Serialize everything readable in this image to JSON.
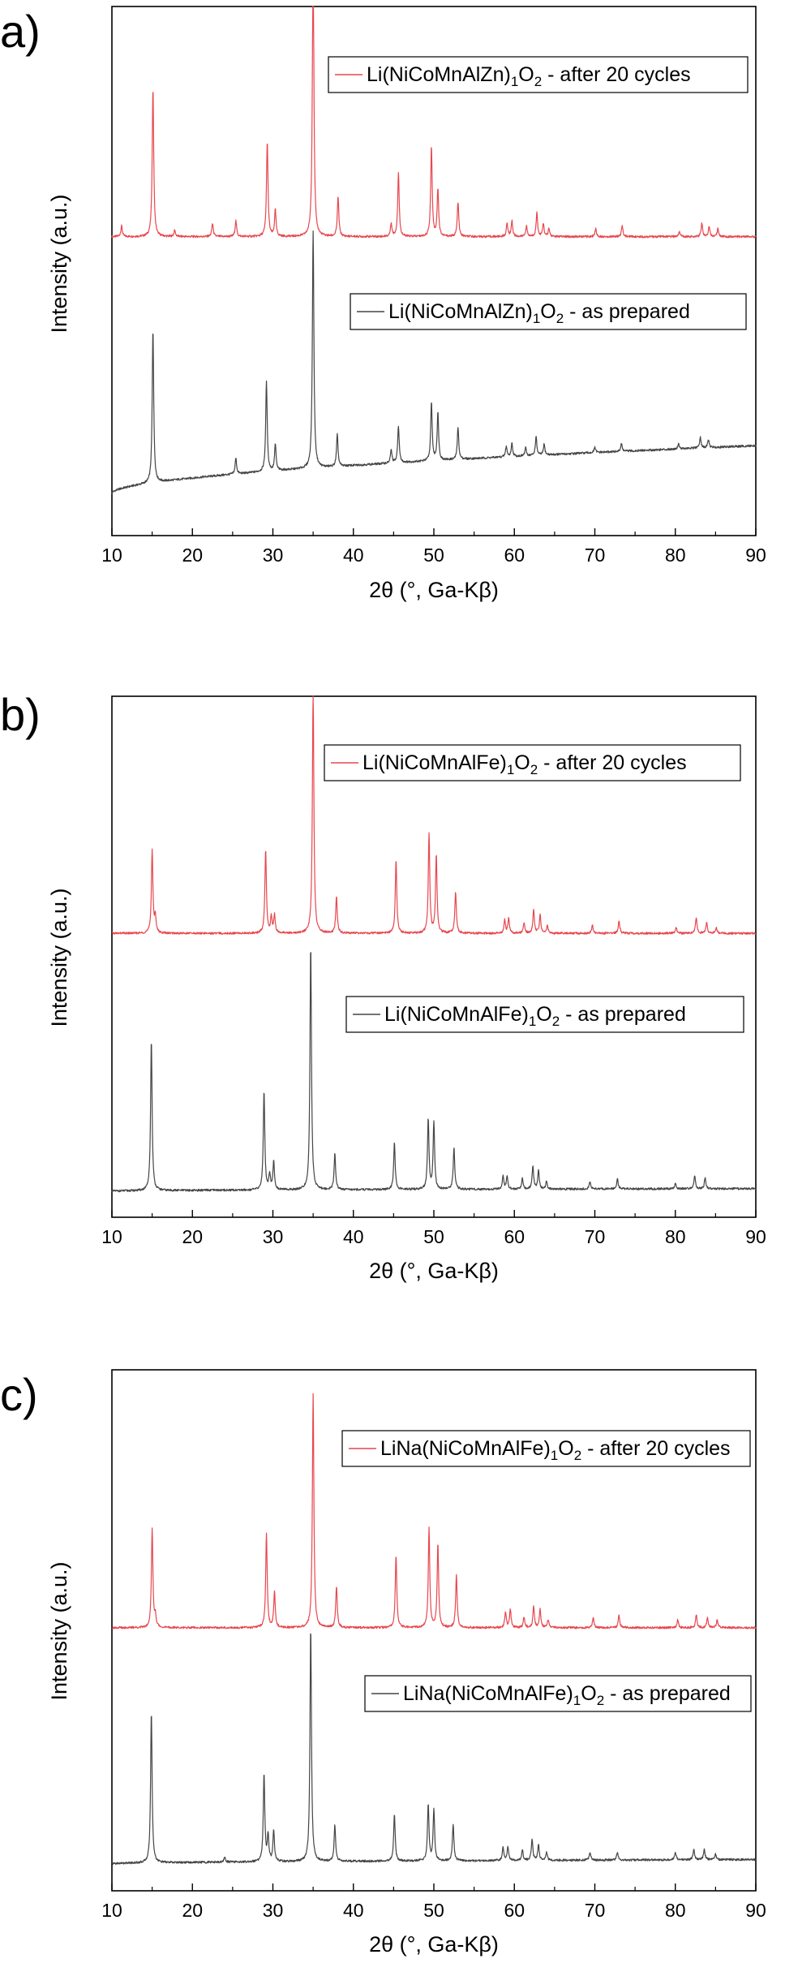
{
  "chart_data": [
    {
      "panel": "a)",
      "type": "line",
      "xlabel": "2θ (°, Ga-Kβ)",
      "ylabel": "Intensity (a.u.)",
      "xlim": [
        10,
        90
      ],
      "xticks": [
        10,
        20,
        30,
        40,
        50,
        60,
        70,
        80,
        90
      ],
      "legend_placement": "top-right, next to each trace",
      "series": [
        {
          "name_main": "Li(NiCoMnAlZn)",
          "name_sub": "1",
          "name_o": "O",
          "name_sub2": "2",
          "name_suffix": " - after 20 cycles",
          "color": "#e8474f",
          "baseline": 0.565,
          "peaks": [
            [
              11.2,
              0.02
            ],
            [
              15.1,
              0.28
            ],
            [
              17.8,
              0.012
            ],
            [
              22.5,
              0.025
            ],
            [
              25.4,
              0.03
            ],
            [
              29.3,
              0.18
            ],
            [
              30.3,
              0.05
            ],
            [
              35.0,
              0.55
            ],
            [
              38.1,
              0.075
            ],
            [
              44.7,
              0.025
            ],
            [
              45.6,
              0.12
            ],
            [
              49.7,
              0.17
            ],
            [
              50.5,
              0.09
            ],
            [
              53.0,
              0.065
            ],
            [
              59.1,
              0.025
            ],
            [
              59.7,
              0.03
            ],
            [
              61.5,
              0.02
            ],
            [
              62.8,
              0.045
            ],
            [
              63.6,
              0.025
            ],
            [
              64.3,
              0.015
            ],
            [
              70.1,
              0.015
            ],
            [
              73.4,
              0.02
            ],
            [
              80.5,
              0.01
            ],
            [
              83.3,
              0.025
            ],
            [
              84.2,
              0.02
            ],
            [
              85.3,
              0.015
            ]
          ]
        },
        {
          "name_main": "Li(NiCoMnAlZn)",
          "name_sub": "1",
          "name_o": "O",
          "name_sub2": "2",
          "name_suffix": " - as prepared",
          "color": "#454545",
          "baseline_start": 0.08,
          "baseline_end": 0.17,
          "peaks": [
            [
              15.1,
              0.29
            ],
            [
              25.4,
              0.03
            ],
            [
              29.2,
              0.17
            ],
            [
              30.3,
              0.05
            ],
            [
              35.0,
              0.45
            ],
            [
              38.0,
              0.06
            ],
            [
              44.7,
              0.025
            ],
            [
              45.6,
              0.07
            ],
            [
              49.7,
              0.11
            ],
            [
              50.5,
              0.09
            ],
            [
              53.0,
              0.06
            ],
            [
              59.0,
              0.02
            ],
            [
              59.7,
              0.025
            ],
            [
              61.4,
              0.015
            ],
            [
              62.7,
              0.035
            ],
            [
              63.7,
              0.02
            ],
            [
              70.0,
              0.01
            ],
            [
              73.3,
              0.015
            ],
            [
              80.4,
              0.01
            ],
            [
              83.1,
              0.02
            ],
            [
              84.1,
              0.015
            ]
          ]
        }
      ]
    },
    {
      "panel": "b)",
      "type": "line",
      "xlabel": "2θ (°, Ga-Kβ)",
      "ylabel": "Intensity (a.u.)",
      "xlim": [
        10,
        90
      ],
      "xticks": [
        10,
        20,
        30,
        40,
        50,
        60,
        70,
        80,
        90
      ],
      "legend_placement": "top-right, next to each trace",
      "series": [
        {
          "name_main": "Li(NiCoMnAlFe)",
          "name_sub": "1",
          "name_o": "O",
          "name_sub2": "2",
          "name_suffix": " - after 20 cycles",
          "color": "#e8474f",
          "baseline": 0.545,
          "peaks": [
            [
              15.0,
              0.16
            ],
            [
              15.4,
              0.03
            ],
            [
              29.1,
              0.16
            ],
            [
              29.8,
              0.03
            ],
            [
              30.2,
              0.035
            ],
            [
              35.0,
              0.47
            ],
            [
              37.9,
              0.07
            ],
            [
              45.3,
              0.14
            ],
            [
              49.4,
              0.19
            ],
            [
              50.3,
              0.15
            ],
            [
              52.7,
              0.08
            ],
            [
              58.8,
              0.025
            ],
            [
              59.3,
              0.03
            ],
            [
              61.2,
              0.02
            ],
            [
              62.4,
              0.045
            ],
            [
              63.2,
              0.035
            ],
            [
              64.1,
              0.015
            ],
            [
              69.7,
              0.015
            ],
            [
              73.0,
              0.025
            ],
            [
              80.1,
              0.01
            ],
            [
              82.6,
              0.03
            ],
            [
              83.9,
              0.02
            ],
            [
              85.1,
              0.01
            ]
          ]
        },
        {
          "name_main": "Li(NiCoMnAlFe)",
          "name_sub": "1",
          "name_o": "O",
          "name_sub2": "2",
          "name_suffix": " - as prepared",
          "color": "#454545",
          "baseline_start": 0.05,
          "baseline_end": 0.055,
          "peaks": [
            [
              14.9,
              0.29
            ],
            [
              28.9,
              0.19
            ],
            [
              29.6,
              0.03
            ],
            [
              30.1,
              0.055
            ],
            [
              34.7,
              0.47
            ],
            [
              37.7,
              0.07
            ],
            [
              45.1,
              0.09
            ],
            [
              49.3,
              0.135
            ],
            [
              50.0,
              0.13
            ],
            [
              52.5,
              0.08
            ],
            [
              58.6,
              0.025
            ],
            [
              59.1,
              0.025
            ],
            [
              61.0,
              0.02
            ],
            [
              62.3,
              0.045
            ],
            [
              63.0,
              0.035
            ],
            [
              64.0,
              0.015
            ],
            [
              69.4,
              0.015
            ],
            [
              72.8,
              0.02
            ],
            [
              80.0,
              0.01
            ],
            [
              82.4,
              0.025
            ],
            [
              83.7,
              0.02
            ]
          ]
        }
      ]
    },
    {
      "panel": "c)",
      "type": "line",
      "xlabel": "2θ (°, Ga-Kβ)",
      "ylabel": "Intensity (a.u.)",
      "xlim": [
        10,
        90
      ],
      "xticks": [
        10,
        20,
        30,
        40,
        50,
        60,
        70,
        80,
        90
      ],
      "legend_placement": "top-right, next to each trace",
      "series": [
        {
          "name_main": "LiNa(NiCoMnAlFe)",
          "name_sub": "1",
          "name_o": "O",
          "name_sub2": "2",
          "name_suffix": " - after 20 cycles",
          "color": "#e8474f",
          "baseline": 0.505,
          "peaks": [
            [
              15.0,
              0.19
            ],
            [
              15.4,
              0.02
            ],
            [
              29.2,
              0.18
            ],
            [
              30.2,
              0.07
            ],
            [
              35.0,
              0.45
            ],
            [
              37.9,
              0.08
            ],
            [
              45.3,
              0.14
            ],
            [
              49.4,
              0.19
            ],
            [
              50.5,
              0.16
            ],
            [
              52.8,
              0.1
            ],
            [
              58.9,
              0.03
            ],
            [
              59.5,
              0.035
            ],
            [
              61.2,
              0.02
            ],
            [
              62.4,
              0.04
            ],
            [
              63.2,
              0.035
            ],
            [
              64.2,
              0.015
            ],
            [
              69.8,
              0.02
            ],
            [
              73.0,
              0.025
            ],
            [
              80.3,
              0.015
            ],
            [
              82.6,
              0.025
            ],
            [
              84.0,
              0.02
            ],
            [
              85.2,
              0.015
            ]
          ]
        },
        {
          "name_main": "LiNa(NiCoMnAlFe)",
          "name_sub": "1",
          "name_o": "O",
          "name_sub2": "2",
          "name_suffix": " - as prepared",
          "color": "#454545",
          "baseline_start": 0.052,
          "baseline_end": 0.06,
          "peaks": [
            [
              14.9,
              0.29
            ],
            [
              24.0,
              0.01
            ],
            [
              28.9,
              0.17
            ],
            [
              29.4,
              0.05
            ],
            [
              30.1,
              0.06
            ],
            [
              34.7,
              0.45
            ],
            [
              37.7,
              0.07
            ],
            [
              45.1,
              0.09
            ],
            [
              49.3,
              0.11
            ],
            [
              50.0,
              0.1
            ],
            [
              52.4,
              0.07
            ],
            [
              58.6,
              0.025
            ],
            [
              59.2,
              0.025
            ],
            [
              61.0,
              0.02
            ],
            [
              62.2,
              0.04
            ],
            [
              63.0,
              0.03
            ],
            [
              64.0,
              0.015
            ],
            [
              69.4,
              0.015
            ],
            [
              72.8,
              0.015
            ],
            [
              80.0,
              0.015
            ],
            [
              82.3,
              0.02
            ],
            [
              83.6,
              0.02
            ],
            [
              85.0,
              0.01
            ]
          ]
        }
      ]
    }
  ]
}
